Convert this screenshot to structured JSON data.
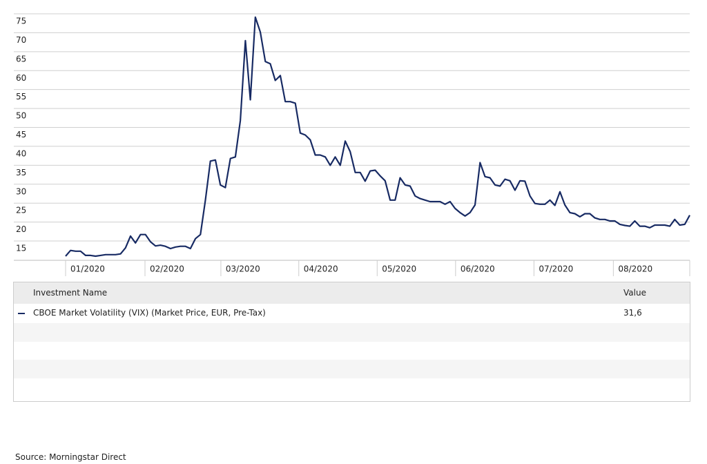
{
  "chart_data": {
    "type": "line",
    "series": [
      {
        "name": "CBOE Market Volatility (VIX) (Market Price, EUR, Pre-Tax)",
        "color": "#172a63",
        "values": [
          11.0,
          12.5,
          12.3,
          12.3,
          11.2,
          11.2,
          11.0,
          11.2,
          11.4,
          11.4,
          11.4,
          11.6,
          13.2,
          16.3,
          14.5,
          16.7,
          16.7,
          14.8,
          13.7,
          13.9,
          13.6,
          13.0,
          13.4,
          13.6,
          13.6,
          13.0,
          15.6,
          16.7,
          25.8,
          36.1,
          36.4,
          29.8,
          29.1,
          36.8,
          37.2,
          46.8,
          67.9,
          52.3,
          74.1,
          70.2,
          62.4,
          61.8,
          57.4,
          58.7,
          51.8,
          51.8,
          51.4,
          43.5,
          43.0,
          41.7,
          37.7,
          37.7,
          37.2,
          35.0,
          37.2,
          35.0,
          41.4,
          38.6,
          33.1,
          33.1,
          30.8,
          33.5,
          33.7,
          32.2,
          30.9,
          25.8,
          25.8,
          31.7,
          29.8,
          29.5,
          26.9,
          26.2,
          25.8,
          25.4,
          25.4,
          25.4,
          24.7,
          25.4,
          23.6,
          22.5,
          21.6,
          22.5,
          24.5,
          35.7,
          32.0,
          31.7,
          29.8,
          29.5,
          31.3,
          30.9,
          28.4,
          30.9,
          30.8,
          26.9,
          24.9,
          24.7,
          24.7,
          25.8,
          24.4,
          28.0,
          24.5,
          22.5,
          22.2,
          21.4,
          22.2,
          22.2,
          21.1,
          20.7,
          20.7,
          20.3,
          20.3,
          19.4,
          19.1,
          18.9,
          20.3,
          18.9,
          18.9,
          18.5,
          19.2,
          19.2,
          19.2,
          18.9,
          20.7,
          19.2,
          19.4,
          21.8
        ]
      }
    ],
    "xlim": [
      0,
      125
    ],
    "xticks": [
      {
        "value": 0,
        "label": "01/2020"
      },
      {
        "value": 15.9,
        "label": "02/2020"
      },
      {
        "value": 31.1,
        "label": "03/2020"
      },
      {
        "value": 46.7,
        "label": "04/2020"
      },
      {
        "value": 62.4,
        "label": "05/2020"
      },
      {
        "value": 78.1,
        "label": "06/2020"
      },
      {
        "value": 93.8,
        "label": "07/2020"
      },
      {
        "value": 109.7,
        "label": "08/2020"
      }
    ],
    "ylim": [
      9.9,
      75
    ],
    "yticks": [
      15,
      20,
      25,
      30,
      35,
      40,
      45,
      50,
      55,
      60,
      65,
      70,
      75
    ],
    "grid": true
  },
  "table": {
    "columns": [
      "Investment Name",
      "Value"
    ],
    "rows": [
      [
        "CBOE Market Volatility (VIX) (Market Price, EUR, Pre-Tax)",
        "31,6"
      ]
    ]
  },
  "source": "Source: Morningstar Direct"
}
